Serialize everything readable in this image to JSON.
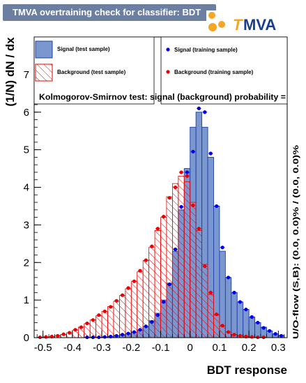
{
  "title": "TMVA overtraining check for classifier: BDT",
  "logo": {
    "t": "T",
    "mva": "MVA"
  },
  "colors": {
    "title_bg": "#6d7fa0",
    "signal_fill": "#7b97cf",
    "signal_line": "#1d3fa8",
    "signal_marker": "#0000ee",
    "background_hatch": "#ee0000",
    "background_marker": "#ee0000",
    "logo_orange": "#f5a623",
    "logo_blue": "#1a3e8c"
  },
  "legend": {
    "signal_test": "Signal (test sample)",
    "background_test": "Background (test sample)",
    "signal_train": "Signal (training sample)",
    "background_train": "Background (training sample)"
  },
  "ks_text": "Kolmogorov-Smirnov test: signal (background) probability =",
  "overflow_text": "U/O-flow (S,B): (0.0, 0.0)% / (0.0, 0.0)%",
  "chart_data": {
    "type": "bar",
    "xlabel": "BDT response",
    "ylabel": "(1/N) dN / dx",
    "xlim": [
      -0.53,
      0.33
    ],
    "ylim": [
      0,
      8
    ],
    "x_ticks": [
      "-0.5",
      "-0.4",
      "-0.3",
      "-0.2",
      "-0.1",
      "0",
      "0.1",
      "0.2",
      "0.3"
    ],
    "y_ticks": [
      "0",
      "1",
      "2",
      "3",
      "4",
      "5",
      "6",
      "7"
    ],
    "bin_edges": [
      -0.52,
      -0.5,
      -0.48,
      -0.46,
      -0.44,
      -0.42,
      -0.4,
      -0.38,
      -0.36,
      -0.34,
      -0.32,
      -0.3,
      -0.28,
      -0.26,
      -0.24,
      -0.22,
      -0.2,
      -0.18,
      -0.16,
      -0.14,
      -0.12,
      -0.1,
      -0.08,
      -0.06,
      -0.04,
      -0.02,
      0,
      0.02,
      0.04,
      0.06,
      0.08,
      0.1,
      0.12,
      0.14,
      0.16,
      0.18,
      0.2,
      0.22,
      0.24,
      0.26,
      0.28,
      0.3,
      0.32
    ],
    "series": [
      {
        "name": "Signal (test sample)",
        "style": "filled",
        "values": [
          0,
          0,
          0,
          0,
          0,
          0,
          0,
          0,
          0.01,
          0.01,
          0.01,
          0.02,
          0.03,
          0.05,
          0.07,
          0.1,
          0.14,
          0.2,
          0.3,
          0.45,
          0.65,
          1.0,
          1.45,
          2.3,
          3.4,
          4.5,
          5.6,
          6.0,
          5.6,
          4.8,
          3.5,
          2.3,
          1.6,
          1.2,
          0.95,
          0.75,
          0.55,
          0.4,
          0.28,
          0.18,
          0.1,
          0.06
        ]
      },
      {
        "name": "Background (test sample)",
        "style": "hatched",
        "values": [
          0.01,
          0.02,
          0.03,
          0.05,
          0.08,
          0.13,
          0.2,
          0.28,
          0.37,
          0.47,
          0.58,
          0.7,
          0.83,
          0.97,
          1.12,
          1.3,
          1.5,
          1.75,
          2.05,
          2.4,
          2.85,
          3.2,
          3.75,
          4.1,
          4.3,
          4.15,
          3.6,
          2.85,
          1.95,
          1.15,
          0.6,
          0.3,
          0.15,
          0.08,
          0.05,
          0.03,
          0.02,
          0.01,
          0.01,
          0,
          0,
          0
        ]
      },
      {
        "name": "Signal (training sample)",
        "style": "points",
        "values": [
          0,
          0,
          0,
          0,
          0,
          0,
          0,
          0,
          0.01,
          0.01,
          0.01,
          0.02,
          0.03,
          0.05,
          0.08,
          0.11,
          0.15,
          0.21,
          0.3,
          0.42,
          0.6,
          0.95,
          1.42,
          2.35,
          3.48,
          4.4,
          4.95,
          6.1,
          6.0,
          4.9,
          3.5,
          2.4,
          1.6,
          1.2,
          0.95,
          0.75,
          0.55,
          0.4,
          0.26,
          0.18,
          0.1,
          0.05
        ]
      },
      {
        "name": "Background (training sample)",
        "style": "points",
        "values": [
          0.01,
          0.02,
          0.03,
          0.05,
          0.09,
          0.13,
          0.21,
          0.28,
          0.38,
          0.47,
          0.6,
          0.7,
          0.82,
          0.98,
          1.13,
          1.32,
          1.5,
          1.78,
          2.06,
          2.43,
          2.9,
          3.22,
          3.72,
          4.0,
          4.4,
          4.3,
          3.52,
          2.9,
          1.9,
          1.2,
          0.62,
          0.32,
          0.15,
          0.08,
          0.05,
          0.03,
          0.02,
          0.01,
          0.01,
          0,
          0,
          0
        ]
      }
    ]
  }
}
